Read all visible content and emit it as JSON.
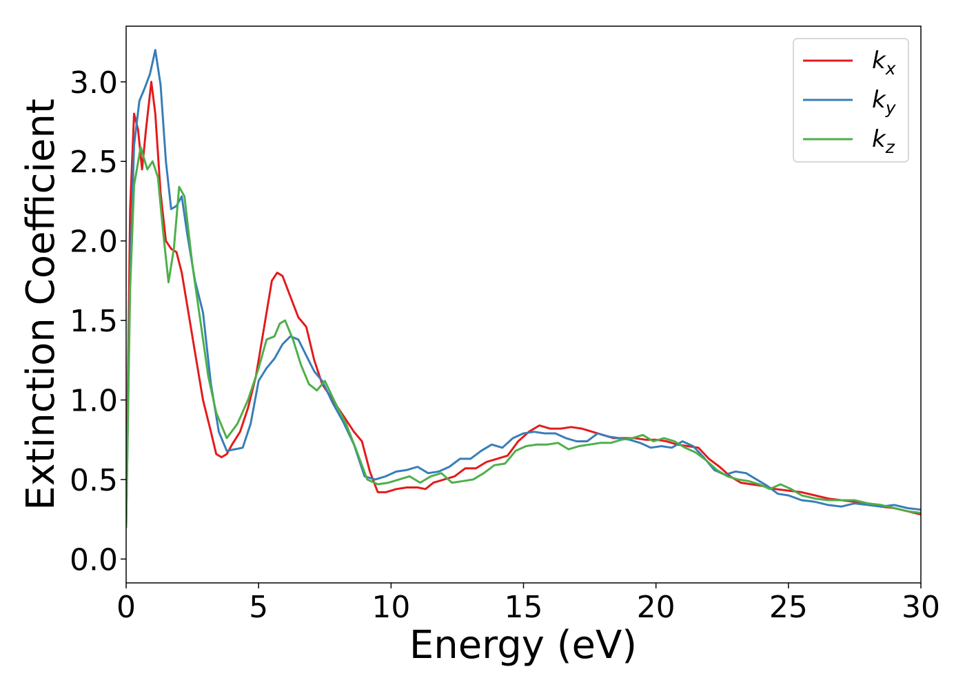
{
  "chart_data": {
    "type": "line",
    "title": "",
    "xlabel": "Energy (eV)",
    "ylabel": "Extinction Coefficient",
    "xlim": [
      0,
      30
    ],
    "ylim": [
      -0.15,
      3.35
    ],
    "xticks": [
      "0",
      "5",
      "10",
      "15",
      "20",
      "25",
      "30"
    ],
    "yticks": [
      "0.0",
      "0.5",
      "1.0",
      "1.5",
      "2.0",
      "2.5",
      "3.0"
    ],
    "grid": false,
    "legend_position": "top-right",
    "series": [
      {
        "name": "k",
        "subscript": "x",
        "color": "#e41a1c",
        "x": [
          0,
          0.15,
          0.3,
          0.45,
          0.6,
          0.75,
          0.95,
          1.1,
          1.3,
          1.5,
          1.7,
          1.9,
          2.1,
          2.3,
          2.6,
          2.9,
          3.2,
          3.4,
          3.6,
          3.8,
          4.0,
          4.3,
          4.6,
          4.9,
          5.2,
          5.5,
          5.7,
          5.9,
          6.2,
          6.5,
          6.8,
          7.1,
          7.4,
          7.8,
          8.2,
          8.6,
          8.9,
          9.2,
          9.5,
          9.8,
          10.2,
          10.6,
          11.0,
          11.3,
          11.6,
          12.0,
          12.4,
          12.8,
          13.2,
          13.6,
          14.0,
          14.4,
          14.8,
          15.2,
          15.6,
          16.0,
          16.4,
          16.8,
          17.2,
          17.6,
          18.0,
          18.4,
          18.8,
          19.2,
          19.6,
          20.0,
          20.4,
          20.8,
          21.2,
          21.6,
          22.0,
          22.4,
          22.8,
          23.2,
          23.6,
          24.0,
          24.5,
          25.0,
          25.5,
          26.0,
          26.5,
          27.0,
          27.5,
          28.0,
          28.5,
          29.0,
          29.5,
          30.0
        ],
        "values": [
          0.2,
          2.2,
          2.8,
          2.7,
          2.45,
          2.7,
          3.0,
          2.8,
          2.3,
          2.0,
          1.95,
          1.93,
          1.8,
          1.6,
          1.3,
          1.0,
          0.8,
          0.66,
          0.64,
          0.66,
          0.72,
          0.8,
          0.95,
          1.15,
          1.45,
          1.75,
          1.8,
          1.78,
          1.65,
          1.52,
          1.46,
          1.25,
          1.1,
          1.0,
          0.9,
          0.8,
          0.74,
          0.55,
          0.42,
          0.42,
          0.44,
          0.45,
          0.45,
          0.44,
          0.48,
          0.5,
          0.52,
          0.57,
          0.57,
          0.61,
          0.63,
          0.65,
          0.74,
          0.8,
          0.84,
          0.82,
          0.82,
          0.83,
          0.82,
          0.8,
          0.78,
          0.76,
          0.76,
          0.76,
          0.75,
          0.75,
          0.74,
          0.72,
          0.71,
          0.7,
          0.63,
          0.58,
          0.52,
          0.48,
          0.47,
          0.46,
          0.44,
          0.43,
          0.42,
          0.4,
          0.38,
          0.37,
          0.36,
          0.35,
          0.33,
          0.32,
          0.3,
          0.28
        ]
      },
      {
        "name": "k",
        "subscript": "y",
        "color": "#377eb8",
        "x": [
          0,
          0.15,
          0.3,
          0.5,
          0.7,
          0.9,
          1.1,
          1.3,
          1.5,
          1.7,
          1.9,
          2.1,
          2.3,
          2.6,
          2.9,
          3.2,
          3.5,
          3.8,
          4.1,
          4.4,
          4.7,
          5.0,
          5.3,
          5.6,
          5.9,
          6.2,
          6.5,
          6.8,
          7.1,
          7.4,
          7.8,
          8.2,
          8.6,
          9.0,
          9.4,
          9.8,
          10.2,
          10.6,
          11.0,
          11.4,
          11.8,
          12.2,
          12.6,
          13.0,
          13.4,
          13.8,
          14.2,
          14.6,
          15.0,
          15.4,
          15.8,
          16.2,
          16.6,
          17.0,
          17.4,
          17.8,
          18.2,
          18.6,
          19.0,
          19.4,
          19.8,
          20.2,
          20.6,
          21.0,
          21.4,
          21.8,
          22.2,
          22.6,
          23.0,
          23.4,
          23.8,
          24.2,
          24.6,
          25.0,
          25.5,
          26.0,
          26.5,
          27.0,
          27.5,
          28.0,
          28.5,
          29.0,
          29.5,
          30.0
        ],
        "values": [
          0.2,
          1.8,
          2.6,
          2.88,
          2.96,
          3.05,
          3.2,
          2.98,
          2.5,
          2.2,
          2.22,
          2.28,
          2.05,
          1.75,
          1.55,
          1.1,
          0.8,
          0.68,
          0.69,
          0.7,
          0.85,
          1.12,
          1.2,
          1.26,
          1.35,
          1.4,
          1.38,
          1.28,
          1.18,
          1.12,
          0.98,
          0.86,
          0.72,
          0.52,
          0.5,
          0.52,
          0.55,
          0.56,
          0.58,
          0.54,
          0.55,
          0.58,
          0.63,
          0.63,
          0.68,
          0.72,
          0.7,
          0.76,
          0.79,
          0.8,
          0.79,
          0.79,
          0.76,
          0.74,
          0.74,
          0.79,
          0.77,
          0.76,
          0.75,
          0.73,
          0.7,
          0.71,
          0.7,
          0.74,
          0.71,
          0.64,
          0.56,
          0.53,
          0.55,
          0.54,
          0.5,
          0.46,
          0.41,
          0.4,
          0.37,
          0.36,
          0.34,
          0.33,
          0.35,
          0.34,
          0.33,
          0.34,
          0.32,
          0.31
        ]
      },
      {
        "name": "k",
        "subscript": "z",
        "color": "#4daf4a",
        "x": [
          0,
          0.15,
          0.3,
          0.55,
          0.8,
          1.0,
          1.2,
          1.4,
          1.6,
          1.8,
          2.0,
          2.2,
          2.5,
          2.8,
          3.1,
          3.4,
          3.8,
          4.2,
          4.6,
          5.0,
          5.3,
          5.6,
          5.8,
          6.0,
          6.3,
          6.6,
          6.9,
          7.2,
          7.5,
          7.9,
          8.3,
          8.7,
          9.1,
          9.5,
          9.9,
          10.3,
          10.7,
          11.1,
          11.5,
          11.9,
          12.3,
          12.7,
          13.1,
          13.5,
          13.9,
          14.3,
          14.7,
          15.1,
          15.5,
          15.9,
          16.3,
          16.7,
          17.1,
          17.5,
          17.9,
          18.3,
          18.7,
          19.1,
          19.5,
          19.9,
          20.3,
          20.7,
          21.1,
          21.5,
          21.9,
          22.3,
          22.7,
          23.1,
          23.5,
          23.9,
          24.3,
          24.7,
          25.1,
          25.5,
          26.0,
          26.5,
          27.0,
          27.5,
          28.0,
          28.5,
          29.0,
          29.5,
          30.0
        ],
        "values": [
          0.2,
          1.7,
          2.35,
          2.59,
          2.45,
          2.5,
          2.4,
          2.05,
          1.74,
          1.95,
          2.34,
          2.28,
          1.85,
          1.5,
          1.15,
          0.92,
          0.76,
          0.85,
          1.0,
          1.2,
          1.38,
          1.4,
          1.48,
          1.5,
          1.38,
          1.22,
          1.1,
          1.06,
          1.12,
          0.98,
          0.85,
          0.68,
          0.5,
          0.47,
          0.48,
          0.5,
          0.52,
          0.48,
          0.52,
          0.54,
          0.48,
          0.49,
          0.5,
          0.54,
          0.59,
          0.6,
          0.68,
          0.71,
          0.72,
          0.72,
          0.73,
          0.69,
          0.71,
          0.72,
          0.73,
          0.73,
          0.75,
          0.76,
          0.78,
          0.74,
          0.76,
          0.74,
          0.7,
          0.67,
          0.62,
          0.56,
          0.52,
          0.5,
          0.49,
          0.47,
          0.44,
          0.47,
          0.44,
          0.4,
          0.38,
          0.37,
          0.37,
          0.37,
          0.35,
          0.34,
          0.32,
          0.3,
          0.29
        ]
      }
    ]
  }
}
